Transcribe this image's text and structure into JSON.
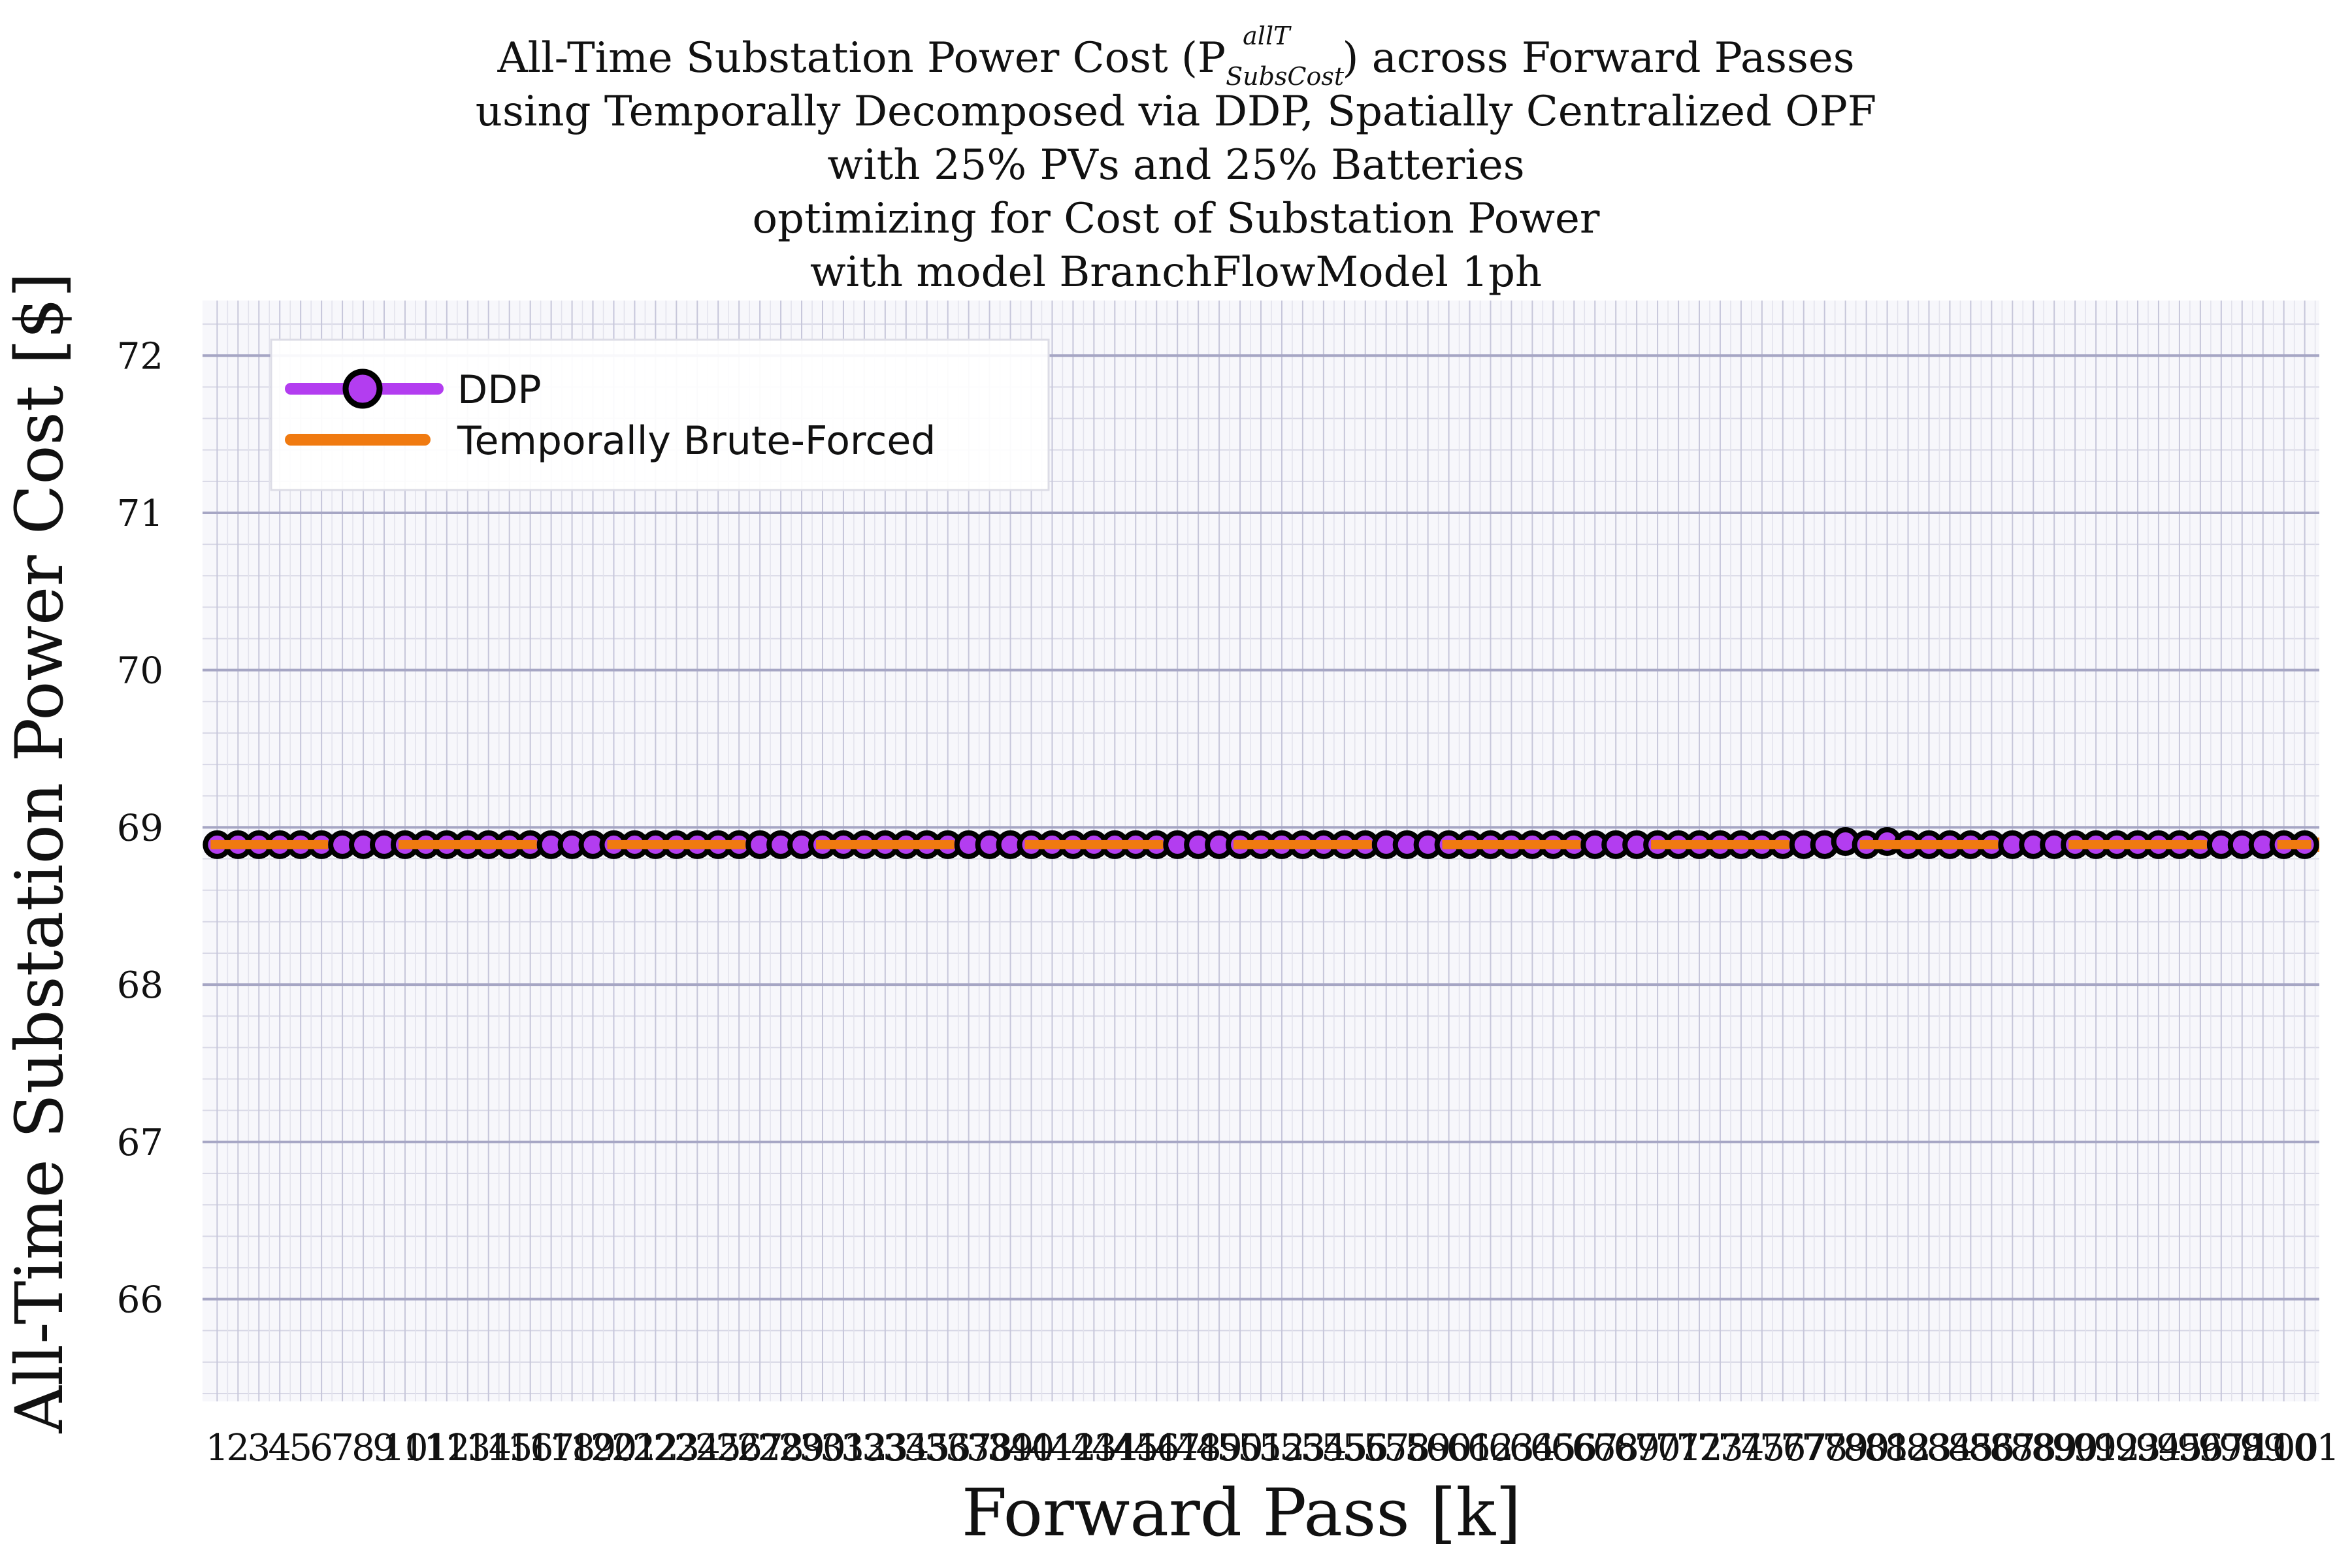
{
  "chart_data": {
    "type": "line",
    "title_lines": [
      "All-Time Substation Power Cost (P",
      "using Temporally Decomposed via DDP, Spatially Centralized OPF",
      "with 25% PVs and 25% Batteries",
      "optimizing for Cost of Substation Power",
      "with model BranchFlowModel 1ph"
    ],
    "title_sup": "allT",
    "title_sub": "SubsCost",
    "title_tail": ") across Forward Passes",
    "xlabel": "Forward Pass [k]",
    "ylabel": "All-Time Substation Power Cost [$]",
    "xlim": [
      0.3,
      101.7
    ],
    "ylim": [
      65.35,
      72.35
    ],
    "yticks": [
      66,
      67,
      68,
      69,
      70,
      71,
      72
    ],
    "x": [
      1,
      2,
      3,
      4,
      5,
      6,
      7,
      8,
      9,
      10,
      11,
      12,
      13,
      14,
      15,
      16,
      17,
      18,
      19,
      20,
      21,
      22,
      23,
      24,
      25,
      26,
      27,
      28,
      29,
      30,
      31,
      32,
      33,
      34,
      35,
      36,
      37,
      38,
      39,
      40,
      41,
      42,
      43,
      44,
      45,
      46,
      47,
      48,
      49,
      50,
      51,
      52,
      53,
      54,
      55,
      56,
      57,
      58,
      59,
      60,
      61,
      62,
      63,
      64,
      65,
      66,
      67,
      68,
      69,
      70,
      71,
      72,
      73,
      74,
      75,
      76,
      77,
      78,
      79,
      80,
      81,
      82,
      83,
      84,
      85,
      86,
      87,
      88,
      89,
      90,
      91,
      92,
      93,
      94,
      95,
      96,
      97,
      98,
      99,
      100,
      101
    ],
    "series": [
      {
        "name": "DDP",
        "color": "#b33df0",
        "marker_edge": "#000000",
        "values": [
          68.89,
          68.89,
          68.89,
          68.89,
          68.89,
          68.89,
          68.89,
          68.89,
          68.89,
          68.89,
          68.89,
          68.89,
          68.89,
          68.89,
          68.89,
          68.89,
          68.89,
          68.89,
          68.89,
          68.89,
          68.89,
          68.89,
          68.89,
          68.89,
          68.89,
          68.89,
          68.89,
          68.89,
          68.89,
          68.89,
          68.89,
          68.89,
          68.89,
          68.89,
          68.89,
          68.89,
          68.89,
          68.89,
          68.89,
          68.89,
          68.89,
          68.89,
          68.89,
          68.89,
          68.89,
          68.89,
          68.89,
          68.89,
          68.89,
          68.89,
          68.89,
          68.89,
          68.89,
          68.89,
          68.89,
          68.89,
          68.89,
          68.89,
          68.89,
          68.89,
          68.89,
          68.89,
          68.89,
          68.89,
          68.89,
          68.89,
          68.89,
          68.89,
          68.89,
          68.89,
          68.89,
          68.89,
          68.89,
          68.89,
          68.89,
          68.89,
          68.89,
          68.89,
          68.91,
          68.89,
          68.91,
          68.89,
          68.89,
          68.89,
          68.89,
          68.89,
          68.89,
          68.89,
          68.89,
          68.89,
          68.89,
          68.89,
          68.89,
          68.89,
          68.89,
          68.89,
          68.89,
          68.89,
          68.89,
          68.89,
          68.89
        ]
      },
      {
        "name": "Temporally Brute-Forced",
        "color": "#f07a10",
        "constant_value": 68.89
      }
    ],
    "legend_position": "top-left",
    "grid": true
  }
}
